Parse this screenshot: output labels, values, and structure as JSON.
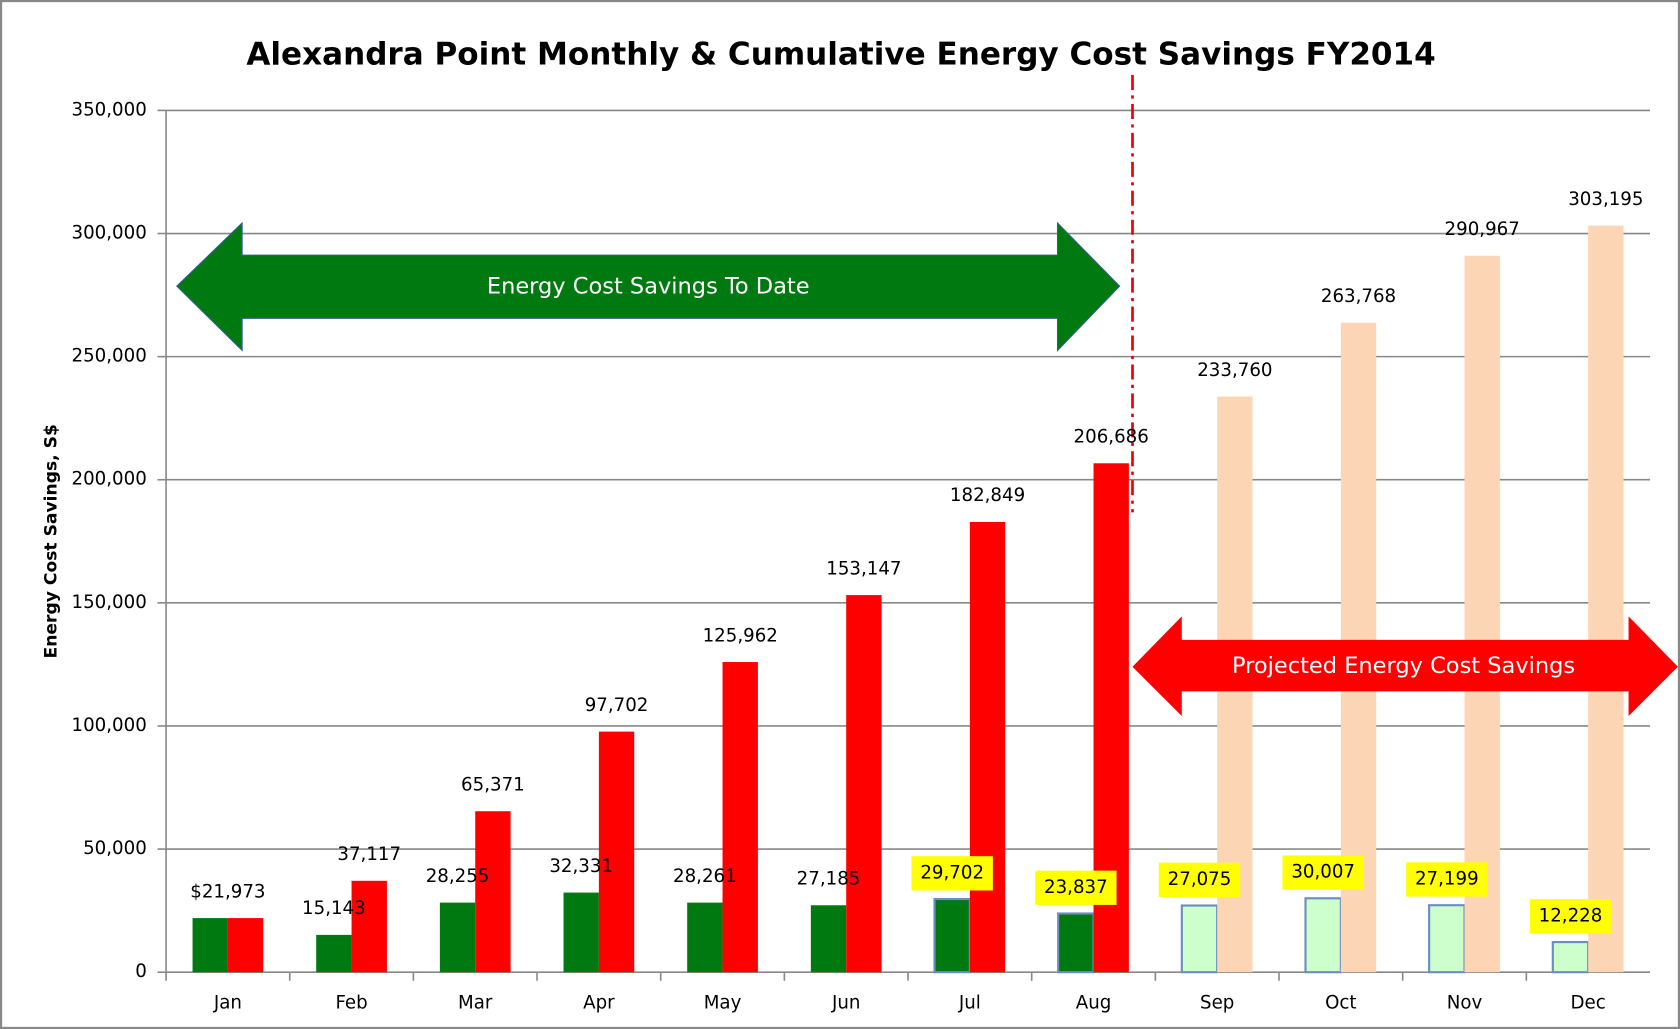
{
  "chart_data": {
    "type": "bar",
    "title": "Alexandra Point Monthly & Cumulative Energy Cost Savings FY2014",
    "y_label": "Energy Cost Savings, S$",
    "categories": [
      "Jan",
      "Feb",
      "Mar",
      "Apr",
      "May",
      "Jun",
      "Jul",
      "Aug",
      "Sep",
      "Oct",
      "Nov",
      "Dec"
    ],
    "series": [
      {
        "values": [
          21973,
          15143,
          28255,
          32331,
          28261,
          27185,
          29702,
          23837,
          27075,
          30007,
          27199,
          12228
        ],
        "value_labels": [
          "$21,973",
          "15,143",
          "28,255",
          "32,331",
          "28,261",
          "27,185",
          "29,702",
          "23,837",
          "27,075",
          "30,007",
          "27,199",
          "12,228"
        ],
        "colors": [
          "#007a10",
          "#007a10",
          "#007a10",
          "#007a10",
          "#007a10",
          "#007a10",
          "#007a10",
          "#007a10",
          "#ccffcc",
          "#ccffcc",
          "#ccffcc",
          "#ccffcc"
        ],
        "label_backgrounds": [
          null,
          null,
          null,
          null,
          null,
          null,
          "#ffff00",
          "#ffff00",
          "#ffff00",
          "#ffff00",
          "#ffff00",
          "#ffff00"
        ]
      },
      {
        "values": [
          21973,
          37117,
          65371,
          97702,
          125962,
          153147,
          182849,
          206686,
          233760,
          263768,
          290967,
          303195
        ],
        "value_labels": [
          null,
          "37,117",
          "65,371",
          "97,702",
          "125,962",
          "153,147",
          "182,849",
          "206,686",
          "233,760",
          "263,768",
          "290,967",
          "303,195"
        ],
        "colors": [
          "#ff0000",
          "#ff0000",
          "#ff0000",
          "#ff0000",
          "#ff0000",
          "#ff0000",
          "#ff0000",
          "#ff0000",
          "#fcd5b5",
          "#fcd5b5",
          "#fcd5b5",
          "#fcd5b5"
        ]
      }
    ],
    "annotations": [
      "Energy Cost Savings To Date",
      "Projected Energy Cost Savings"
    ],
    "ylim": [
      0,
      350000
    ],
    "yticks": [
      0,
      {
        "value": 50000,
        "label": "50,000"
      },
      {
        "value": 100000,
        "label": "100,000"
      },
      {
        "value": 150000,
        "label": "150,000"
      },
      {
        "value": 200000,
        "label": "200,000"
      },
      {
        "value": 250000,
        "label": "250,000"
      },
      {
        "value": 300000,
        "label": "300,000"
      },
      {
        "value": 350000,
        "label": "350,000"
      }
    ],
    "grid": true
  }
}
